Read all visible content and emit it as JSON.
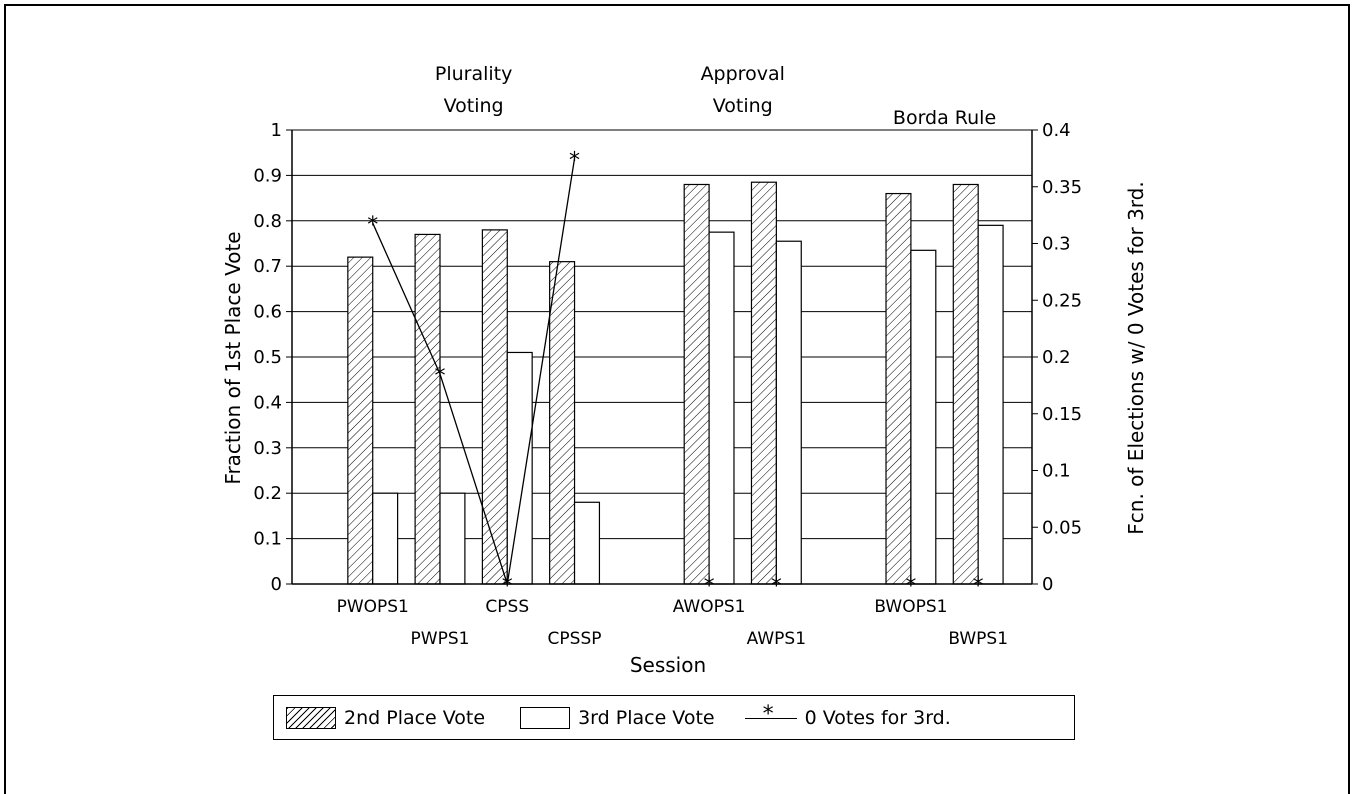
{
  "chart_data": {
    "type": "bar",
    "xlabel": "Session",
    "ylabel": "Fraction of 1st Place Vote",
    "y2label": "Fcn. of Elections w/ 0 Votes for 3rd.",
    "ylim": [
      0,
      1
    ],
    "y2lim": [
      0,
      0.4
    ],
    "yticks": [
      "0",
      "0.1",
      "0.2",
      "0.3",
      "0.4",
      "0.5",
      "0.6",
      "0.7",
      "0.8",
      "0.9",
      "1"
    ],
    "y2ticks": [
      "0",
      "0.05",
      "0.1",
      "0.15",
      "0.2",
      "0.25",
      "0.3",
      "0.35",
      "0.4"
    ],
    "grid": true,
    "legend_position": "bottom",
    "groups": [
      {
        "title_line1": "Plurality",
        "title_line2": "Voting"
      },
      {
        "title_line1": "Approval",
        "title_line2": "Voting"
      },
      {
        "title_line1": "Borda Rule",
        "title_line2": ""
      }
    ],
    "categories": [
      "PWOPS1",
      "PWPS1",
      "CPSS",
      "CPSSP",
      "AWOPS1",
      "AWPS1",
      "BWOPS1",
      "BWPS1"
    ],
    "series": [
      {
        "name": "2nd Place Vote",
        "kind": "bar",
        "pattern": "hatch",
        "axis": "left",
        "values": [
          0.72,
          0.77,
          0.78,
          0.71,
          0.88,
          0.885,
          0.86,
          0.88
        ]
      },
      {
        "name": "3rd Place Vote",
        "kind": "bar",
        "pattern": "plain",
        "axis": "left",
        "values": [
          0.2,
          0.2,
          0.51,
          0.18,
          0.775,
          0.755,
          0.735,
          0.79
        ]
      },
      {
        "name": "0 Votes for 3rd.",
        "kind": "line",
        "marker": "*",
        "axis": "right",
        "values": [
          0.318,
          0.185,
          0,
          0.375,
          0,
          0,
          0,
          0
        ]
      }
    ]
  }
}
